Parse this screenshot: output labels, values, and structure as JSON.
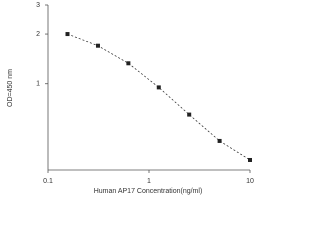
{
  "chart_data": {
    "type": "scatter",
    "x_label": "Human AP17 Concentration(ng/ml)",
    "y_label": "OD=450 nm",
    "x_scale": "log",
    "y_scale": "log",
    "xlim": [
      0.1,
      10
    ],
    "xticks": [
      0.1,
      1,
      10
    ],
    "ylim": [
      0.3,
      3
    ],
    "yticks": [
      1,
      2,
      3
    ],
    "color": "#222222",
    "line": "dashed",
    "x": [
      0.156,
      0.3125,
      0.625,
      1.25,
      2.5,
      5,
      10
    ],
    "values": [
      2.0,
      1.7,
      1.33,
      0.95,
      0.65,
      0.45,
      0.345
    ]
  }
}
